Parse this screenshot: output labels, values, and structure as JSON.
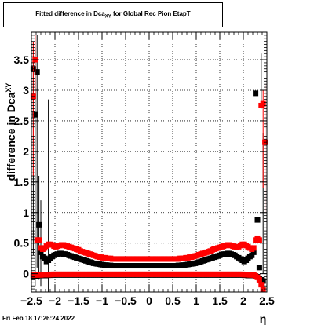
{
  "title": {
    "prefix": "Fitted difference in Dca",
    "subscript": "XY",
    "suffix": " for Global Rec Pion EtapT"
  },
  "footer": "Fri Feb 18 17:26:24 2022",
  "colors": {
    "series_red": "#ff0000",
    "series_black": "#000000",
    "grid": "#000000"
  },
  "chart_data": {
    "type": "scatter",
    "title": "Fitted difference in Dca_XY for Global Rec Pion EtapT",
    "xlabel": "η",
    "ylabel": "difference in Dca_XY",
    "xlim": [
      -2.5,
      2.5
    ],
    "ylim": [
      -0.3,
      3.95
    ],
    "xticks": [
      -2.5,
      -2,
      -1.5,
      -1,
      -0.5,
      0,
      0.5,
      1,
      1.5,
      2,
      2.5
    ],
    "xtick_labels": [
      "−2.5",
      "−2",
      "−1.5",
      "−1",
      "−0.5",
      "0",
      "0.5",
      "1",
      "1.5",
      "2",
      "2.5"
    ],
    "yticks": [
      0,
      0.5,
      1,
      1.5,
      2,
      2.5,
      3,
      3.5
    ],
    "ytick_labels": [
      "0",
      "0.5",
      "1",
      "1.5",
      "2",
      "2.5",
      "3",
      "3.5"
    ],
    "grid": true,
    "series": [
      {
        "color": "#000000",
        "x": [
          -2.46,
          -2.42,
          -2.38,
          -2.34,
          -2.3,
          -2.26,
          -2.22,
          -2.18,
          -2.14,
          -2.1,
          -2.06,
          -2.02,
          -1.98,
          -1.94,
          -1.9,
          -1.86,
          -1.82,
          -1.78,
          -1.74,
          -1.7,
          -1.66,
          -1.62,
          -1.58,
          -1.54,
          -1.5,
          -1.46,
          -1.42,
          -1.38,
          -1.34,
          -1.3,
          -1.26,
          -1.22,
          -1.18,
          -1.14,
          -1.1,
          -1.06,
          -1.02,
          -0.98,
          -0.94,
          -0.9,
          -0.86,
          -0.82,
          -0.78,
          -0.74,
          -0.7,
          -0.66,
          -0.62,
          -0.58,
          -0.54,
          -0.5,
          -0.46,
          -0.42,
          -0.38,
          -0.34,
          -0.3,
          -0.26,
          -0.22,
          -0.18,
          -0.14,
          -0.1,
          -0.06,
          -0.02,
          0.02,
          0.06,
          0.1,
          0.14,
          0.18,
          0.22,
          0.26,
          0.3,
          0.34,
          0.38,
          0.42,
          0.46,
          0.5,
          0.54,
          0.58,
          0.62,
          0.66,
          0.7,
          0.74,
          0.78,
          0.82,
          0.86,
          0.9,
          0.94,
          0.98,
          1.02,
          1.06,
          1.1,
          1.14,
          1.18,
          1.22,
          1.26,
          1.3,
          1.34,
          1.38,
          1.42,
          1.46,
          1.5,
          1.54,
          1.58,
          1.62,
          1.66,
          1.7,
          1.74,
          1.78,
          1.82,
          1.86,
          1.9,
          1.94,
          1.98,
          2.02,
          2.06,
          2.1,
          2.14,
          2.18,
          2.22,
          2.26,
          2.3,
          2.34,
          2.38,
          2.42,
          2.46
        ],
        "top": [
          3.35,
          2.6,
          3.3,
          0.8,
          0.35,
          0.28,
          0.25,
          0.2,
          0.22,
          0.25,
          0.28,
          0.3,
          0.31,
          0.32,
          0.33,
          0.33,
          0.32,
          0.32,
          0.31,
          0.3,
          0.29,
          0.28,
          0.27,
          0.26,
          0.25,
          0.24,
          0.23,
          0.22,
          0.21,
          0.2,
          0.19,
          0.18,
          0.17,
          0.165,
          0.16,
          0.155,
          0.15,
          0.145,
          0.14,
          0.14,
          0.135,
          0.135,
          0.13,
          0.13,
          0.13,
          0.13,
          0.13,
          0.13,
          0.13,
          0.13,
          0.13,
          0.13,
          0.13,
          0.13,
          0.13,
          0.13,
          0.13,
          0.13,
          0.13,
          0.13,
          0.13,
          0.13,
          0.13,
          0.13,
          0.13,
          0.13,
          0.13,
          0.13,
          0.13,
          0.13,
          0.13,
          0.13,
          0.13,
          0.13,
          0.13,
          0.13,
          0.13,
          0.135,
          0.135,
          0.14,
          0.14,
          0.145,
          0.15,
          0.155,
          0.16,
          0.165,
          0.17,
          0.18,
          0.19,
          0.2,
          0.21,
          0.22,
          0.23,
          0.24,
          0.25,
          0.26,
          0.27,
          0.28,
          0.29,
          0.3,
          0.31,
          0.32,
          0.32,
          0.33,
          0.33,
          0.32,
          0.31,
          0.3,
          0.28,
          0.26,
          0.24,
          0.22,
          0.2,
          0.22,
          0.25,
          0.28,
          0.3,
          0.35,
          2.95,
          0.88,
          0.1
        ],
        "bottom": [
          -0.05,
          -0.04,
          -0.04,
          -0.03,
          -0.03,
          -0.03,
          -0.03,
          -0.03,
          -0.025,
          -0.025,
          -0.02,
          -0.02,
          -0.02,
          -0.02,
          -0.02,
          -0.02,
          -0.02,
          -0.02,
          -0.02,
          -0.02,
          -0.02,
          -0.02,
          -0.02,
          -0.02,
          -0.02,
          -0.02,
          -0.02,
          -0.02,
          -0.02,
          -0.02,
          -0.02,
          -0.02,
          -0.02,
          -0.02,
          -0.02,
          -0.02,
          -0.02,
          -0.02,
          -0.02,
          -0.02,
          -0.02,
          -0.02,
          -0.02,
          -0.02,
          -0.02,
          -0.02,
          -0.02,
          -0.02,
          -0.02,
          -0.02,
          -0.02,
          -0.02,
          -0.02,
          -0.02,
          -0.02,
          -0.02,
          -0.02,
          -0.02,
          -0.02,
          -0.02,
          -0.02,
          -0.02,
          -0.02,
          -0.02,
          -0.02,
          -0.02,
          -0.02,
          -0.02,
          -0.02,
          -0.02,
          -0.02,
          -0.02,
          -0.02,
          -0.02,
          -0.02,
          -0.02,
          -0.02,
          -0.02,
          -0.02,
          -0.02,
          -0.02,
          -0.02,
          -0.02,
          -0.02,
          -0.02,
          -0.02,
          -0.02,
          -0.02,
          -0.02,
          -0.02,
          -0.02,
          -0.02,
          -0.02,
          -0.02,
          -0.02,
          -0.02,
          -0.02,
          -0.02,
          -0.02,
          -0.02,
          -0.02,
          -0.02,
          -0.02,
          -0.02,
          -0.02,
          -0.02,
          -0.02,
          -0.02,
          -0.02,
          -0.02,
          -0.02,
          -0.02,
          -0.025,
          -0.025,
          -0.03,
          -0.03,
          -0.03,
          -0.03,
          -0.04,
          -0.05,
          -0.08,
          -0.1,
          -0.12
        ]
      },
      {
        "color": "#ff0000",
        "x": [
          -2.46,
          -2.42,
          -2.38,
          -2.34,
          -2.3,
          -2.26,
          -2.22,
          -2.18,
          -2.14,
          -2.1,
          -2.06,
          -2.02,
          -1.98,
          -1.94,
          -1.9,
          -1.86,
          -1.82,
          -1.78,
          -1.74,
          -1.7,
          -1.66,
          -1.62,
          -1.58,
          -1.54,
          -1.5,
          -1.46,
          -1.42,
          -1.38,
          -1.34,
          -1.3,
          -1.26,
          -1.22,
          -1.18,
          -1.14,
          -1.1,
          -1.06,
          -1.02,
          -0.98,
          -0.94,
          -0.9,
          -0.86,
          -0.82,
          -0.78,
          -0.74,
          -0.7,
          -0.66,
          -0.62,
          -0.58,
          -0.54,
          -0.5,
          -0.46,
          -0.42,
          -0.38,
          -0.34,
          -0.3,
          -0.26,
          -0.22,
          -0.18,
          -0.14,
          -0.1,
          -0.06,
          -0.02,
          0.02,
          0.06,
          0.1,
          0.14,
          0.18,
          0.22,
          0.26,
          0.3,
          0.34,
          0.38,
          0.42,
          0.46,
          0.5,
          0.54,
          0.58,
          0.62,
          0.66,
          0.7,
          0.74,
          0.78,
          0.82,
          0.86,
          0.9,
          0.94,
          0.98,
          1.02,
          1.06,
          1.1,
          1.14,
          1.18,
          1.22,
          1.26,
          1.3,
          1.34,
          1.38,
          1.42,
          1.46,
          1.5,
          1.54,
          1.58,
          1.62,
          1.66,
          1.7,
          1.74,
          1.78,
          1.82,
          1.86,
          1.9,
          1.94,
          1.98,
          2.02,
          2.06,
          2.1,
          2.14,
          2.18,
          2.22,
          2.26,
          2.3,
          2.34,
          2.38,
          2.42,
          2.46
        ],
        "top": [
          2.9,
          3.5,
          0.55,
          0.55,
          0.42,
          0.4,
          0.42,
          0.45,
          0.48,
          0.48,
          0.47,
          0.45,
          0.44,
          0.45,
          0.46,
          0.47,
          0.47,
          0.46,
          0.45,
          0.44,
          0.43,
          0.42,
          0.41,
          0.4,
          0.39,
          0.37,
          0.36,
          0.35,
          0.34,
          0.33,
          0.32,
          0.31,
          0.3,
          0.29,
          0.28,
          0.27,
          0.27,
          0.26,
          0.26,
          0.25,
          0.25,
          0.25,
          0.24,
          0.24,
          0.24,
          0.24,
          0.24,
          0.24,
          0.24,
          0.24,
          0.24,
          0.24,
          0.24,
          0.24,
          0.24,
          0.24,
          0.24,
          0.24,
          0.24,
          0.24,
          0.24,
          0.24,
          0.24,
          0.24,
          0.24,
          0.24,
          0.24,
          0.24,
          0.24,
          0.24,
          0.24,
          0.24,
          0.24,
          0.24,
          0.24,
          0.24,
          0.24,
          0.24,
          0.25,
          0.25,
          0.25,
          0.26,
          0.26,
          0.27,
          0.27,
          0.28,
          0.29,
          0.3,
          0.31,
          0.32,
          0.33,
          0.34,
          0.35,
          0.36,
          0.37,
          0.39,
          0.4,
          0.41,
          0.42,
          0.43,
          0.44,
          0.45,
          0.46,
          0.47,
          0.47,
          0.46,
          0.45,
          0.44,
          0.43,
          0.44,
          0.46,
          0.48,
          0.48,
          0.46,
          0.44,
          0.42,
          0.4,
          0.42,
          0.55,
          0.58,
          0.55,
          2.75,
          2.78,
          2.15
        ],
        "bottom": [
          -0.02,
          -0.02,
          -0.02,
          -0.02,
          -0.02,
          -0.015,
          -0.015,
          -0.015,
          -0.015,
          -0.015,
          -0.01,
          -0.01,
          -0.01,
          -0.01,
          -0.01,
          -0.01,
          -0.01,
          -0.01,
          -0.01,
          -0.01,
          -0.01,
          -0.01,
          -0.01,
          -0.01,
          -0.01,
          -0.01,
          -0.01,
          -0.01,
          -0.01,
          -0.01,
          -0.01,
          -0.01,
          -0.01,
          -0.01,
          -0.01,
          -0.01,
          -0.01,
          -0.01,
          -0.01,
          -0.01,
          -0.01,
          -0.01,
          -0.01,
          -0.01,
          -0.01,
          -0.01,
          -0.01,
          -0.01,
          -0.01,
          -0.01,
          -0.01,
          -0.01,
          -0.01,
          -0.01,
          -0.01,
          -0.01,
          -0.01,
          -0.01,
          -0.01,
          -0.01,
          -0.01,
          -0.01,
          -0.01,
          -0.01,
          -0.01,
          -0.01,
          -0.01,
          -0.01,
          -0.01,
          -0.01,
          -0.01,
          -0.01,
          -0.01,
          -0.01,
          -0.01,
          -0.01,
          -0.01,
          -0.01,
          -0.01,
          -0.01,
          -0.01,
          -0.01,
          -0.01,
          -0.01,
          -0.01,
          -0.01,
          -0.01,
          -0.01,
          -0.01,
          -0.01,
          -0.01,
          -0.01,
          -0.01,
          -0.01,
          -0.01,
          -0.01,
          -0.01,
          -0.01,
          -0.01,
          -0.01,
          -0.01,
          -0.01,
          -0.01,
          -0.01,
          -0.01,
          -0.01,
          -0.01,
          -0.01,
          -0.01,
          -0.01,
          -0.01,
          -0.01,
          -0.015,
          -0.015,
          -0.015,
          -0.02,
          -0.02,
          -0.02,
          -0.04,
          -0.06,
          -0.1,
          -0.18,
          -0.26
        ]
      }
    ]
  }
}
